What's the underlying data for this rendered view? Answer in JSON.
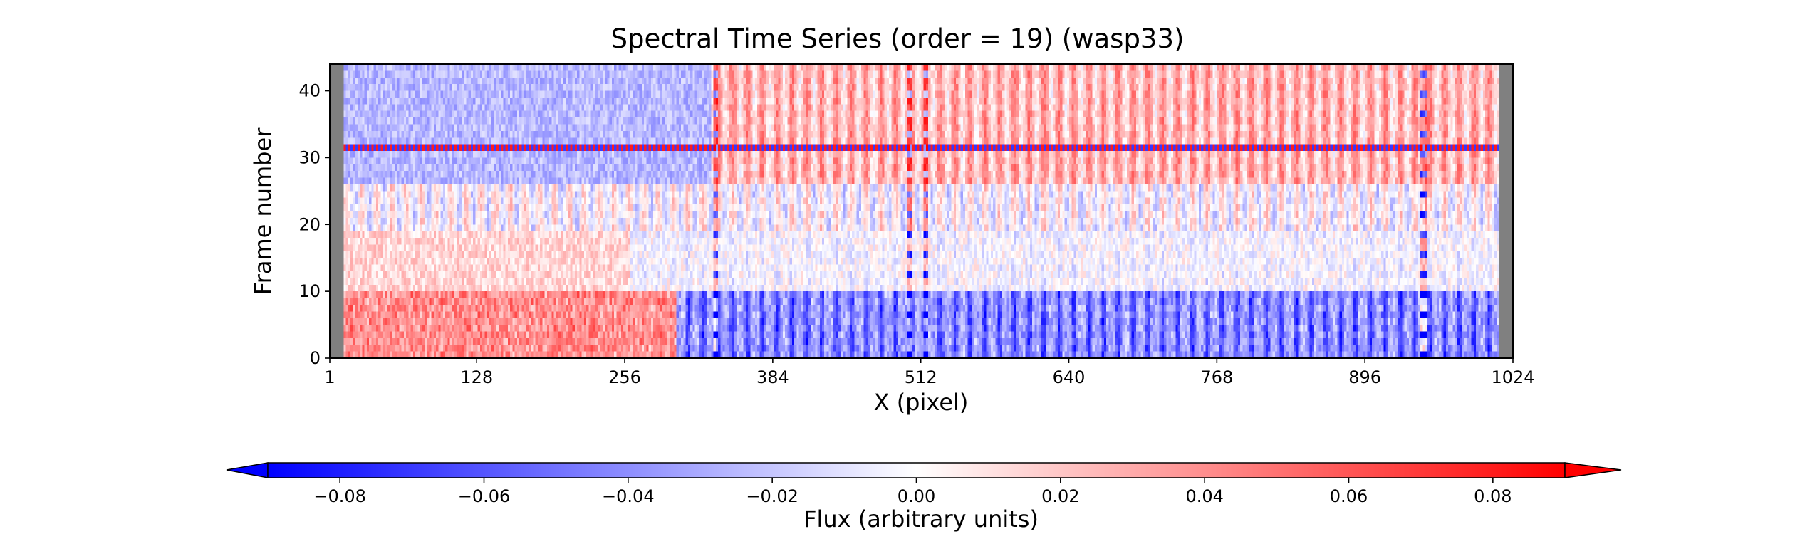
{
  "chart_data": {
    "type": "heatmap",
    "title": "Spectral Time Series (order = 19) (wasp33)",
    "xlabel": "X (pixel)",
    "ylabel": "Frame number",
    "x_ticks": [
      1,
      128,
      256,
      384,
      512,
      640,
      768,
      896,
      1024
    ],
    "y_ticks": [
      0,
      10,
      20,
      30,
      40
    ],
    "xlim": [
      1,
      1024
    ],
    "ylim": [
      0,
      44
    ],
    "n_frames": 44,
    "masked_edges": {
      "left": [
        1,
        12
      ],
      "right": [
        1012,
        1024
      ],
      "color": "#808080"
    },
    "colormap": "bwr",
    "colorbar": {
      "label": "Flux (arbitrary units)",
      "ticks": [
        "−0.08",
        "−0.06",
        "−0.04",
        "−0.02",
        "0.00",
        "0.02",
        "0.04",
        "0.06",
        "0.08"
      ],
      "tick_values": [
        -0.08,
        -0.06,
        -0.04,
        -0.02,
        0.0,
        0.02,
        0.04,
        0.06,
        0.08
      ],
      "range": [
        -0.09,
        0.09
      ],
      "extend": "both"
    },
    "features": {
      "bright_red_row_frame": 31,
      "low_frames_blue_lines_region": [
        320,
        1012
      ],
      "low_frames_red_region": [
        12,
        300
      ],
      "strong_vertical_lines_x": [
        334,
        503,
        517,
        947
      ]
    }
  }
}
